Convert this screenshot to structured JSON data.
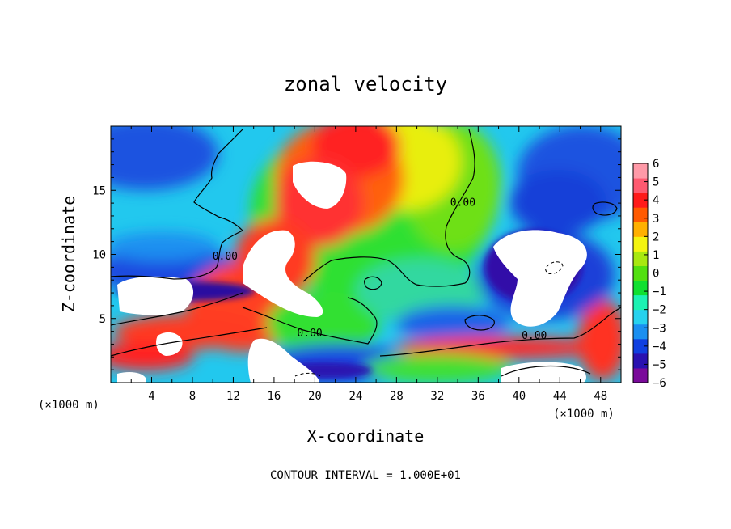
{
  "chart_data": {
    "type": "heatmap",
    "title": "zonal velocity",
    "xlabel": "X-coordinate",
    "ylabel": "Z-coordinate",
    "x_unit_left": "(×1000 m)",
    "x_unit_right": "(×1000 m)",
    "xlim": [
      0,
      50
    ],
    "ylim": [
      0,
      20
    ],
    "x_ticks": [
      4,
      8,
      12,
      16,
      20,
      24,
      28,
      32,
      36,
      40,
      44,
      48
    ],
    "y_ticks": [
      5,
      10,
      15
    ],
    "colorbar": {
      "min": -6,
      "max": 6,
      "tick_values": [
        6,
        5,
        4,
        3,
        2,
        1,
        0,
        -1,
        -2,
        -3,
        -4,
        -5,
        -6
      ],
      "tick_labels": [
        "6",
        "5",
        "4",
        "3",
        "2",
        "1",
        "0",
        "−1",
        "−2",
        "−3",
        "−4",
        "−5",
        "−6"
      ],
      "colors": [
        "#7a0a9a",
        "#2a12b0",
        "#1040e0",
        "#1a8ff0",
        "#27d2ee",
        "#1cf2b2",
        "#10e030",
        "#52e010",
        "#a8e810",
        "#f4f410",
        "#ffb000",
        "#ff5a00",
        "#ff1a1a",
        "#ff5a70",
        "#ff9aa8"
      ]
    },
    "contour_labels": [
      {
        "text": "0.00",
        "x": 19.5,
        "y": 3.6
      },
      {
        "text": "0.00",
        "x": 41.5,
        "y": 3.4
      },
      {
        "text": "0.00",
        "x": 34.5,
        "y": 13.8
      },
      {
        "text": "0.00",
        "x": 11.2,
        "y": 9.6
      }
    ],
    "annotation": "CONTOUR INTERVAL = 1.000E+01",
    "grid": false,
    "legend": "colorbar right"
  }
}
